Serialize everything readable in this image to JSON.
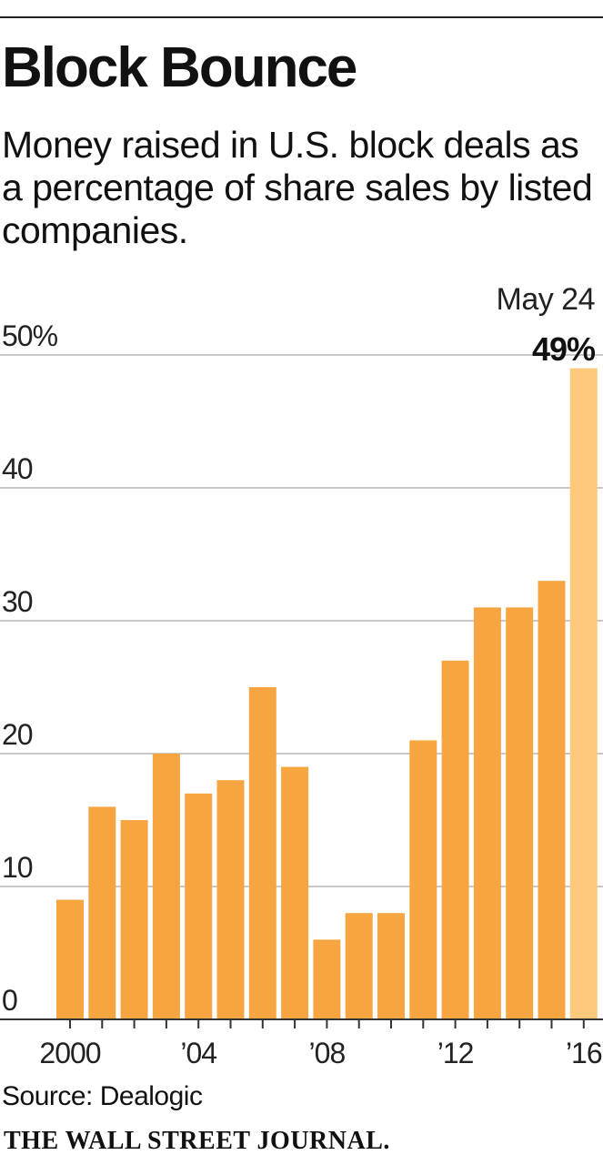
{
  "title": "Block Bounce",
  "subtitle": "Money raised in U.S. block deals as a percentage of share sales by listed companies.",
  "source": "Source: Dealogic",
  "masthead": "THE WALL STREET JOURNAL.",
  "colors": {
    "bar": "#f7a540",
    "bar_highlight": "#fdc97c",
    "grid": "#c8c8c8",
    "axis": "#333333"
  },
  "chart_data": {
    "type": "bar",
    "title": "Block Bounce",
    "categories": [
      "2000",
      "2001",
      "2002",
      "2003",
      "2004",
      "2005",
      "2006",
      "2007",
      "2008",
      "2009",
      "2010",
      "2011",
      "2012",
      "2013",
      "2014",
      "2015",
      "2016"
    ],
    "values": [
      9,
      16,
      15,
      20,
      17,
      18,
      25,
      19,
      6,
      8,
      8,
      21,
      27,
      31,
      31,
      33,
      49
    ],
    "highlight_index": 16,
    "ylim": [
      0,
      50
    ],
    "yticks": [
      0,
      10,
      20,
      30,
      40,
      50
    ],
    "ytick_labels": [
      "0",
      "10",
      "20",
      "30",
      "40",
      "50%"
    ],
    "xtick_labels": [
      {
        "index": 0,
        "label": "2000"
      },
      {
        "index": 4,
        "label": "’04"
      },
      {
        "index": 8,
        "label": "’08"
      },
      {
        "index": 12,
        "label": "’12"
      },
      {
        "index": 16,
        "label": "’16"
      }
    ],
    "annotation": {
      "index": 16,
      "date": "May 24",
      "value_label": "49%"
    },
    "grid": true
  }
}
